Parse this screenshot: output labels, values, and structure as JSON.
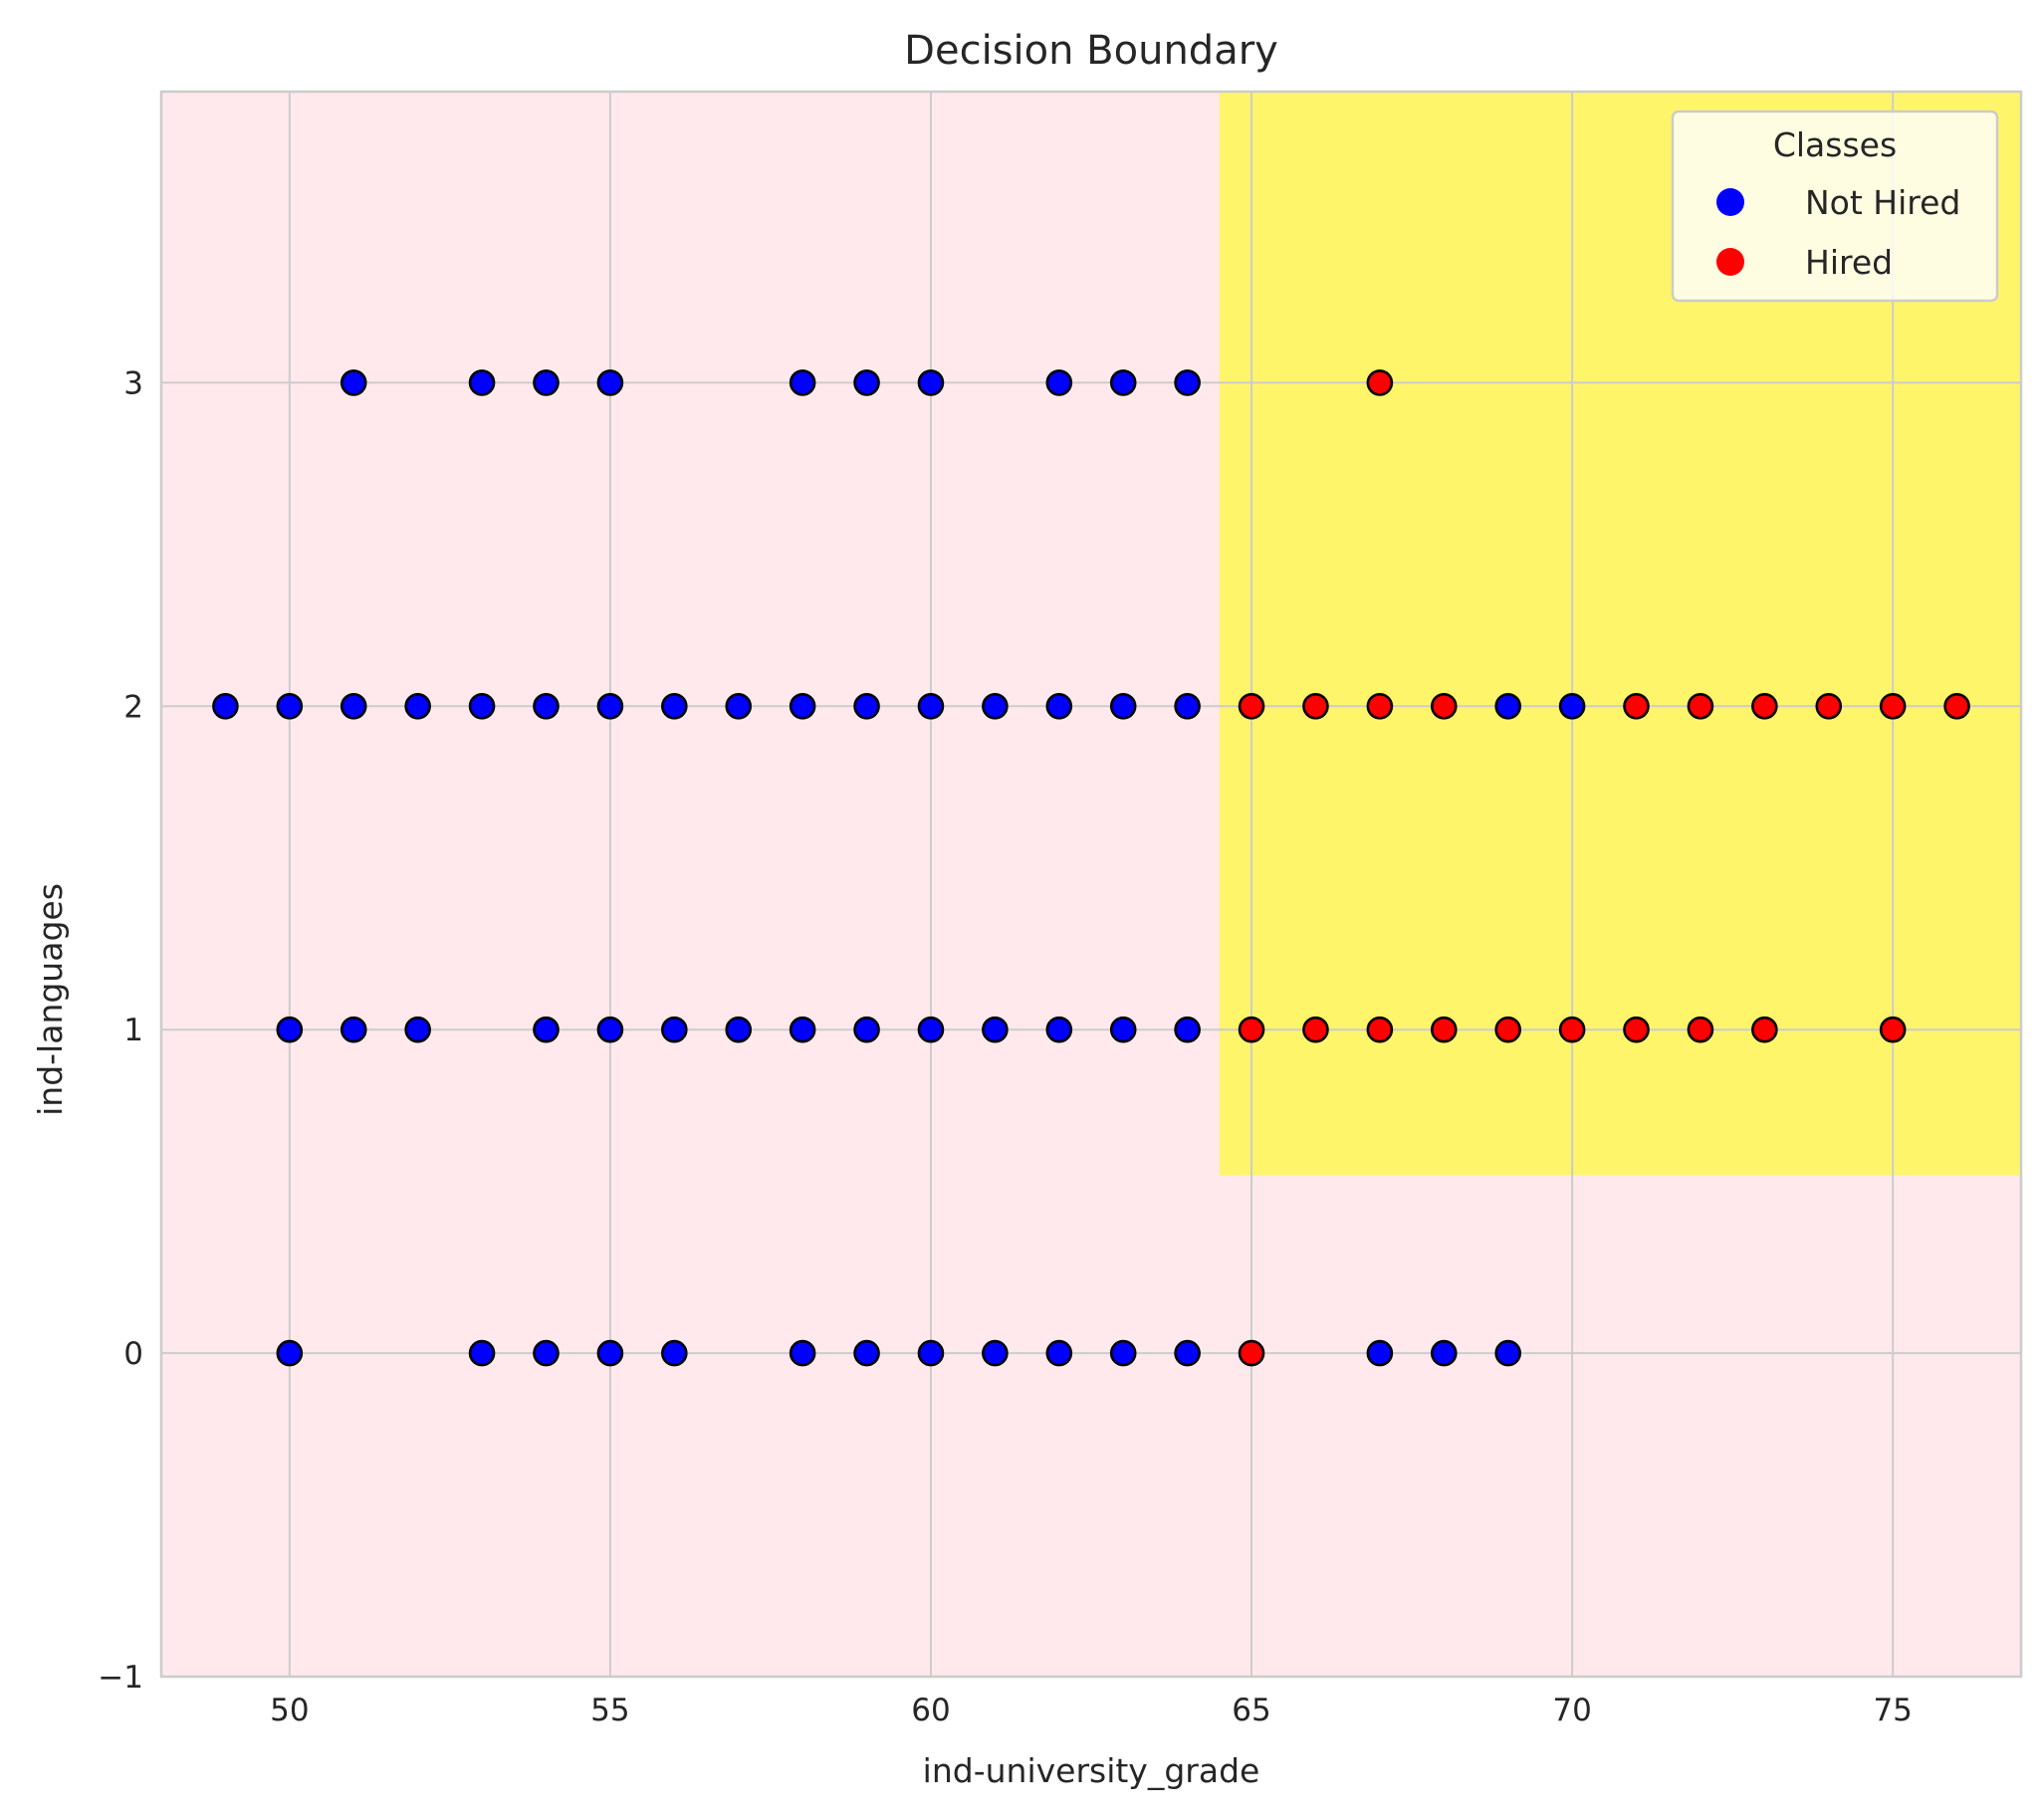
{
  "chart_data": {
    "type": "scatter",
    "title": "Decision Boundary",
    "xlabel": "ind-university_grade",
    "ylabel": "ind-languages",
    "xlim": [
      48,
      77
    ],
    "ylim": [
      -1,
      3.9
    ],
    "xticks": [
      50,
      55,
      60,
      65,
      70,
      75
    ],
    "yticks": [
      -1,
      0,
      1,
      2,
      3
    ],
    "ytick_labels": [
      "−1",
      "0",
      "1",
      "2",
      "3"
    ],
    "grid": true,
    "legend": {
      "title": "Classes",
      "placement": "top-right",
      "entries": [
        {
          "label": "Not Hired",
          "color": "#0000ff"
        },
        {
          "label": "Hired",
          "color": "#ff0000"
        }
      ]
    },
    "regions": [
      {
        "class": "Not Hired",
        "color": "#ffc0cb",
        "opacity": 0.35
      },
      {
        "class": "Hired",
        "color": "#ffff00",
        "opacity": 0.3,
        "x_min": 64.5,
        "y_min": 0.55
      }
    ],
    "series": [
      {
        "name": "Not Hired",
        "color": "#0000ff",
        "points": [
          [
            51,
            3
          ],
          [
            53,
            3
          ],
          [
            54,
            3
          ],
          [
            55,
            3
          ],
          [
            58,
            3
          ],
          [
            59,
            3
          ],
          [
            60,
            3
          ],
          [
            62,
            3
          ],
          [
            63,
            3
          ],
          [
            64,
            3
          ],
          [
            49,
            2
          ],
          [
            50,
            2
          ],
          [
            51,
            2
          ],
          [
            52,
            2
          ],
          [
            53,
            2
          ],
          [
            54,
            2
          ],
          [
            55,
            2
          ],
          [
            56,
            2
          ],
          [
            57,
            2
          ],
          [
            58,
            2
          ],
          [
            59,
            2
          ],
          [
            60,
            2
          ],
          [
            61,
            2
          ],
          [
            62,
            2
          ],
          [
            63,
            2
          ],
          [
            64,
            2
          ],
          [
            69,
            2
          ],
          [
            70,
            2
          ],
          [
            50,
            1
          ],
          [
            51,
            1
          ],
          [
            52,
            1
          ],
          [
            54,
            1
          ],
          [
            55,
            1
          ],
          [
            56,
            1
          ],
          [
            57,
            1
          ],
          [
            58,
            1
          ],
          [
            59,
            1
          ],
          [
            60,
            1
          ],
          [
            61,
            1
          ],
          [
            62,
            1
          ],
          [
            63,
            1
          ],
          [
            64,
            1
          ],
          [
            50,
            0
          ],
          [
            53,
            0
          ],
          [
            54,
            0
          ],
          [
            55,
            0
          ],
          [
            56,
            0
          ],
          [
            58,
            0
          ],
          [
            59,
            0
          ],
          [
            60,
            0
          ],
          [
            61,
            0
          ],
          [
            62,
            0
          ],
          [
            63,
            0
          ],
          [
            64,
            0
          ],
          [
            67,
            0
          ],
          [
            68,
            0
          ],
          [
            69,
            0
          ]
        ]
      },
      {
        "name": "Hired",
        "color": "#ff0000",
        "points": [
          [
            67,
            3
          ],
          [
            65,
            2
          ],
          [
            66,
            2
          ],
          [
            67,
            2
          ],
          [
            68,
            2
          ],
          [
            71,
            2
          ],
          [
            72,
            2
          ],
          [
            73,
            2
          ],
          [
            74,
            2
          ],
          [
            75,
            2
          ],
          [
            76,
            2
          ],
          [
            65,
            1
          ],
          [
            66,
            1
          ],
          [
            67,
            1
          ],
          [
            68,
            1
          ],
          [
            69,
            1
          ],
          [
            70,
            1
          ],
          [
            71,
            1
          ],
          [
            72,
            1
          ],
          [
            73,
            1
          ],
          [
            75,
            1
          ],
          [
            65,
            0
          ]
        ]
      }
    ]
  }
}
